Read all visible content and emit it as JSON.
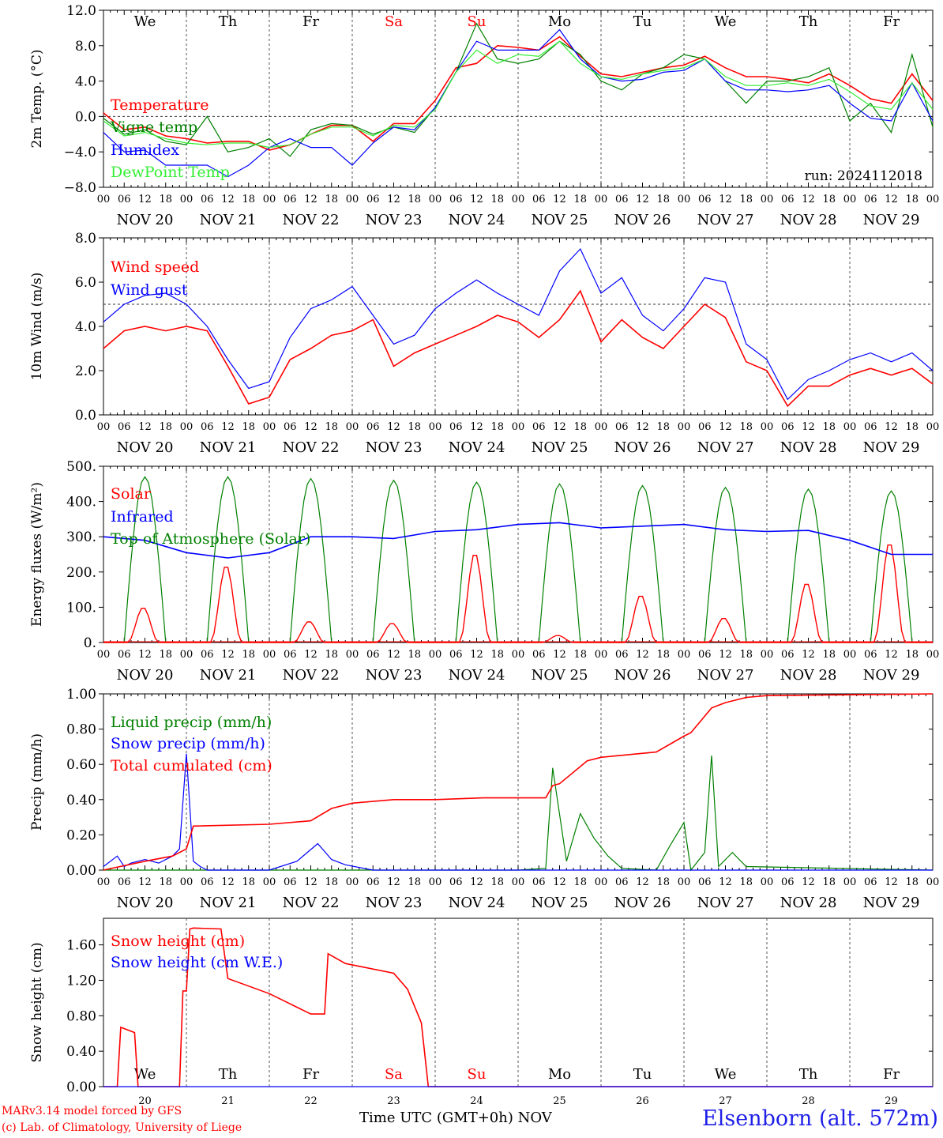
{
  "footer": {
    "credit_line1": "MARv3.14 model forced by GFS",
    "credit_line2": "(c) Lab. of Climatology, University of Liege",
    "xaxis_title": "Time UTC (GMT+0h) NOV",
    "location": "Elsenborn (alt. 572m)"
  },
  "colors": {
    "red": "#ff0000",
    "green": "#008000",
    "blue": "#0000ff",
    "light_green": "#33ee33",
    "grid": "#555555"
  },
  "chart_data": [
    {
      "type": "line",
      "ylabel": "2m Temp. (°C)",
      "ylim": [
        -8,
        12
      ],
      "yticks": [
        "12.0",
        "8.0",
        "4.0",
        "0.0",
        "−4.0",
        "−8.0"
      ],
      "weekdays": [
        "We",
        "Th",
        "Fr",
        "Sa",
        "Su",
        "Mo",
        "Tu",
        "We",
        "Th",
        "Fr"
      ],
      "weekday_colors": [
        "black",
        "black",
        "black",
        "red",
        "red",
        "black",
        "black",
        "black",
        "black",
        "black"
      ],
      "x_hour_labels": [
        "00",
        "06",
        "12",
        "18"
      ],
      "x_day_labels": [
        "NOV 20",
        "NOV 21",
        "NOV 22",
        "NOV 23",
        "NOV 24",
        "NOV 25",
        "NOV 26",
        "NOV 27",
        "NOV 28",
        "NOV 29"
      ],
      "dashed_ref": 0,
      "run_label": "run: 2024112018",
      "x_hours": [
        0,
        6,
        12,
        18,
        24,
        30,
        36,
        42,
        48,
        54,
        60,
        66,
        72,
        78,
        84,
        90,
        96,
        102,
        108,
        114,
        120,
        126,
        132,
        138,
        144,
        150,
        156,
        162,
        168,
        174,
        180,
        186,
        192,
        198,
        204,
        210,
        216,
        222,
        228,
        234,
        240
      ],
      "series": [
        {
          "name": "Temperature",
          "color": "red",
          "values": [
            0.4,
            -1.5,
            -1.2,
            -2.2,
            -2.5,
            -3.0,
            -2.8,
            -2.8,
            -3.8,
            -3.2,
            -2.0,
            -1.0,
            -1.0,
            -2.8,
            -0.8,
            -0.8,
            1.8,
            5.5,
            6.0,
            8.0,
            7.8,
            7.5,
            9.0,
            6.8,
            4.8,
            4.5,
            5.0,
            5.5,
            5.8,
            6.8,
            5.5,
            4.5,
            4.5,
            4.2,
            3.8,
            4.8,
            3.5,
            2.0,
            1.5,
            4.8,
            1.8
          ]
        },
        {
          "name": "Vigne temp",
          "color": "green",
          "values": [
            -0.2,
            -2.0,
            -1.5,
            -2.8,
            -3.2,
            0.0,
            -4.0,
            -3.5,
            -2.5,
            -4.5,
            -1.5,
            -0.8,
            -1.0,
            -2.0,
            -1.2,
            -1.8,
            1.0,
            5.0,
            10.5,
            6.5,
            6.0,
            6.5,
            8.5,
            7.0,
            4.0,
            3.0,
            4.8,
            5.5,
            7.0,
            6.5,
            4.0,
            1.5,
            4.0,
            4.0,
            4.5,
            5.5,
            -0.5,
            1.5,
            -1.8,
            7.0,
            -1.2
          ]
        },
        {
          "name": "Humidex",
          "color": "blue",
          "values": [
            -1.8,
            -4.0,
            -3.8,
            -5.5,
            -5.5,
            -5.5,
            -6.8,
            -5.5,
            -3.5,
            -2.5,
            -3.5,
            -3.5,
            -5.5,
            -3.0,
            -1.2,
            -1.5,
            1.0,
            5.0,
            8.5,
            7.5,
            7.5,
            7.5,
            9.8,
            6.5,
            4.5,
            4.0,
            4.2,
            5.0,
            5.2,
            6.5,
            4.0,
            3.0,
            3.0,
            2.8,
            3.0,
            3.5,
            1.5,
            -0.2,
            -0.5,
            3.8,
            -0.5
          ]
        },
        {
          "name": "DewPoint Temp",
          "color": "light_green",
          "values": [
            -0.5,
            -2.2,
            -1.8,
            -2.5,
            -3.0,
            -3.2,
            -3.0,
            -3.0,
            -3.5,
            -3.2,
            -2.0,
            -1.2,
            -1.2,
            -2.2,
            -1.0,
            -1.2,
            0.8,
            5.0,
            7.5,
            6.0,
            7.0,
            6.8,
            8.5,
            6.0,
            4.5,
            4.2,
            4.8,
            5.2,
            5.5,
            6.5,
            4.5,
            3.5,
            3.5,
            3.8,
            3.5,
            4.2,
            2.8,
            1.2,
            0.8,
            3.8,
            0.8
          ]
        }
      ]
    },
    {
      "type": "line",
      "ylabel": "10m Wind (m/s)",
      "ylim": [
        0,
        8
      ],
      "yticks": [
        "8.0",
        "6.0",
        "4.0",
        "2.0",
        "0.0"
      ],
      "x_hour_labels": [
        "00",
        "06",
        "12",
        "18"
      ],
      "x_day_labels": [
        "NOV 20",
        "NOV 21",
        "NOV 22",
        "NOV 23",
        "NOV 24",
        "NOV 25",
        "NOV 26",
        "NOV 27",
        "NOV 28",
        "NOV 29"
      ],
      "dashed_ref": 5,
      "x_hours": [
        0,
        6,
        12,
        18,
        24,
        30,
        36,
        42,
        48,
        54,
        60,
        66,
        72,
        78,
        84,
        90,
        96,
        102,
        108,
        114,
        120,
        126,
        132,
        138,
        144,
        150,
        156,
        162,
        168,
        174,
        180,
        186,
        192,
        198,
        204,
        210,
        216,
        222,
        228,
        234,
        240
      ],
      "series": [
        {
          "name": "Wind speed",
          "color": "red",
          "values": [
            3.0,
            3.8,
            4.0,
            3.8,
            4.0,
            3.8,
            2.2,
            0.5,
            0.8,
            2.5,
            3.0,
            3.6,
            3.8,
            4.3,
            2.2,
            2.8,
            3.2,
            3.6,
            4.0,
            4.5,
            4.2,
            3.5,
            4.3,
            5.6,
            3.3,
            4.3,
            3.5,
            3.0,
            4.0,
            5.0,
            4.4,
            2.4,
            2.0,
            0.4,
            1.3,
            1.3,
            1.8,
            2.1,
            1.8,
            2.1,
            1.4
          ]
        },
        {
          "name": "Wind gust",
          "color": "blue",
          "values": [
            4.2,
            5.0,
            5.4,
            5.5,
            5.0,
            4.0,
            2.5,
            1.2,
            1.5,
            3.5,
            4.8,
            5.2,
            5.8,
            4.5,
            3.2,
            3.6,
            4.8,
            5.5,
            6.1,
            5.5,
            5.0,
            4.5,
            6.5,
            7.5,
            5.5,
            6.2,
            4.5,
            3.8,
            4.8,
            6.2,
            6.0,
            3.2,
            2.5,
            0.7,
            1.6,
            2.0,
            2.5,
            2.8,
            2.4,
            2.8,
            2.0
          ]
        }
      ]
    },
    {
      "type": "line",
      "ylabel": "Energy fluxes (W/m²)",
      "ylim": [
        0,
        500
      ],
      "yticks": [
        "500.",
        "400.",
        "300.",
        "200.",
        "100.",
        "0."
      ],
      "x_hour_labels": [
        "00",
        "06",
        "12",
        "18"
      ],
      "x_day_labels": [
        "NOV 20",
        "NOV 21",
        "NOV 22",
        "NOV 23",
        "NOV 24",
        "NOV 25",
        "NOV 26",
        "NOV 27",
        "NOV 28",
        "NOV 29"
      ],
      "solar_peaks": [
        100,
        220,
        60,
        55,
        255,
        20,
        135,
        70,
        170,
        285
      ],
      "toa_peaks": [
        470,
        470,
        465,
        460,
        455,
        450,
        445,
        440,
        435,
        430
      ],
      "x_hours": [
        0,
        12,
        24,
        36,
        48,
        60,
        72,
        84,
        96,
        108,
        120,
        132,
        144,
        156,
        168,
        180,
        192,
        204,
        216,
        228,
        240
      ],
      "series": [
        {
          "name": "Solar",
          "color": "red",
          "values": []
        },
        {
          "name": "Infrared",
          "color": "blue",
          "values": [
            300,
            290,
            255,
            240,
            255,
            300,
            300,
            295,
            315,
            320,
            335,
            340,
            325,
            330,
            335,
            320,
            315,
            318,
            290,
            250,
            250
          ]
        },
        {
          "name": "Top of Atmosphere (Solar)",
          "color": "green",
          "values": []
        }
      ]
    },
    {
      "type": "line",
      "ylabel": "Precip (mm/h)",
      "ylim": [
        0,
        1
      ],
      "yticks": [
        "1.00",
        "0.80",
        "0.60",
        "0.40",
        "0.20",
        "0.00"
      ],
      "x_hour_labels": [
        "00",
        "06",
        "12",
        "18"
      ],
      "x_day_labels": [
        "NOV 20",
        "NOV 21",
        "NOV 22",
        "NOV 23",
        "NOV 24",
        "NOV 25",
        "NOV 26",
        "NOV 27",
        "NOV 28",
        "NOV 29"
      ],
      "series": [
        {
          "name": "Liquid precip (mm/h)",
          "color": "green",
          "x_hours": [
            0,
            120,
            128,
            130,
            134,
            138,
            142,
            146,
            150,
            160,
            164,
            168,
            170,
            174,
            176,
            178,
            182,
            186,
            240
          ],
          "values": [
            0.0,
            0.0,
            0.01,
            0.58,
            0.05,
            0.32,
            0.18,
            0.08,
            0.01,
            0.0,
            0.14,
            0.27,
            0.0,
            0.1,
            0.65,
            0.02,
            0.1,
            0.02,
            0.0
          ]
        },
        {
          "name": "Snow precip (mm/h)",
          "color": "blue",
          "x_hours": [
            0,
            4,
            6,
            8,
            12,
            16,
            20,
            22,
            24,
            26,
            28,
            30,
            48,
            56,
            62,
            66,
            70,
            78,
            96,
            240
          ],
          "values": [
            0.02,
            0.08,
            0.02,
            0.04,
            0.06,
            0.04,
            0.08,
            0.12,
            0.66,
            0.05,
            0.02,
            0.0,
            0.0,
            0.05,
            0.15,
            0.06,
            0.03,
            0.0,
            0.0,
            0.0
          ]
        },
        {
          "name": "Total cumulated (cm)",
          "color": "red",
          "x_hours": [
            0,
            12,
            20,
            24,
            26,
            48,
            60,
            66,
            72,
            84,
            96,
            110,
            120,
            128,
            130,
            132,
            140,
            144,
            160,
            168,
            170,
            176,
            180,
            186,
            192,
            240
          ],
          "values": [
            0.0,
            0.05,
            0.08,
            0.12,
            0.25,
            0.26,
            0.28,
            0.35,
            0.38,
            0.4,
            0.4,
            0.41,
            0.41,
            0.41,
            0.48,
            0.49,
            0.62,
            0.64,
            0.67,
            0.76,
            0.78,
            0.92,
            0.95,
            0.98,
            0.99,
            1.0
          ]
        }
      ]
    },
    {
      "type": "line",
      "ylabel": "Snow height (cm)",
      "ylim": [
        0,
        1.9
      ],
      "yticks": [
        "1.60",
        "1.20",
        "0.80",
        "0.40",
        "0.00"
      ],
      "weekdays": [
        "We",
        "Th",
        "Fr",
        "Sa",
        "Su",
        "Mo",
        "Tu",
        "We",
        "Th",
        "Fr"
      ],
      "weekday_colors": [
        "black",
        "black",
        "black",
        "red",
        "red",
        "black",
        "black",
        "black",
        "black",
        "black"
      ],
      "day_numbers": [
        "20",
        "21",
        "22",
        "23",
        "24",
        "25",
        "26",
        "27",
        "28",
        "29"
      ],
      "series": [
        {
          "name": "Snow height (cm)",
          "color": "red",
          "x_hours": [
            0,
            4,
            5,
            9,
            10,
            22,
            23,
            24,
            25,
            26,
            34,
            36,
            48,
            60,
            64,
            65,
            70,
            84,
            88,
            92,
            94,
            95,
            96,
            240
          ],
          "values": [
            0.0,
            0.0,
            0.67,
            0.61,
            0.0,
            0.0,
            1.08,
            1.08,
            1.78,
            1.79,
            1.78,
            1.22,
            1.05,
            0.82,
            0.82,
            1.5,
            1.39,
            1.28,
            1.1,
            0.72,
            0.0,
            0.0,
            0.0,
            0.0
          ]
        },
        {
          "name": "Snow height (cm W.E.)",
          "color": "blue",
          "x_hours": [
            0,
            240
          ],
          "values": [
            0.0,
            0.0
          ]
        }
      ]
    }
  ]
}
